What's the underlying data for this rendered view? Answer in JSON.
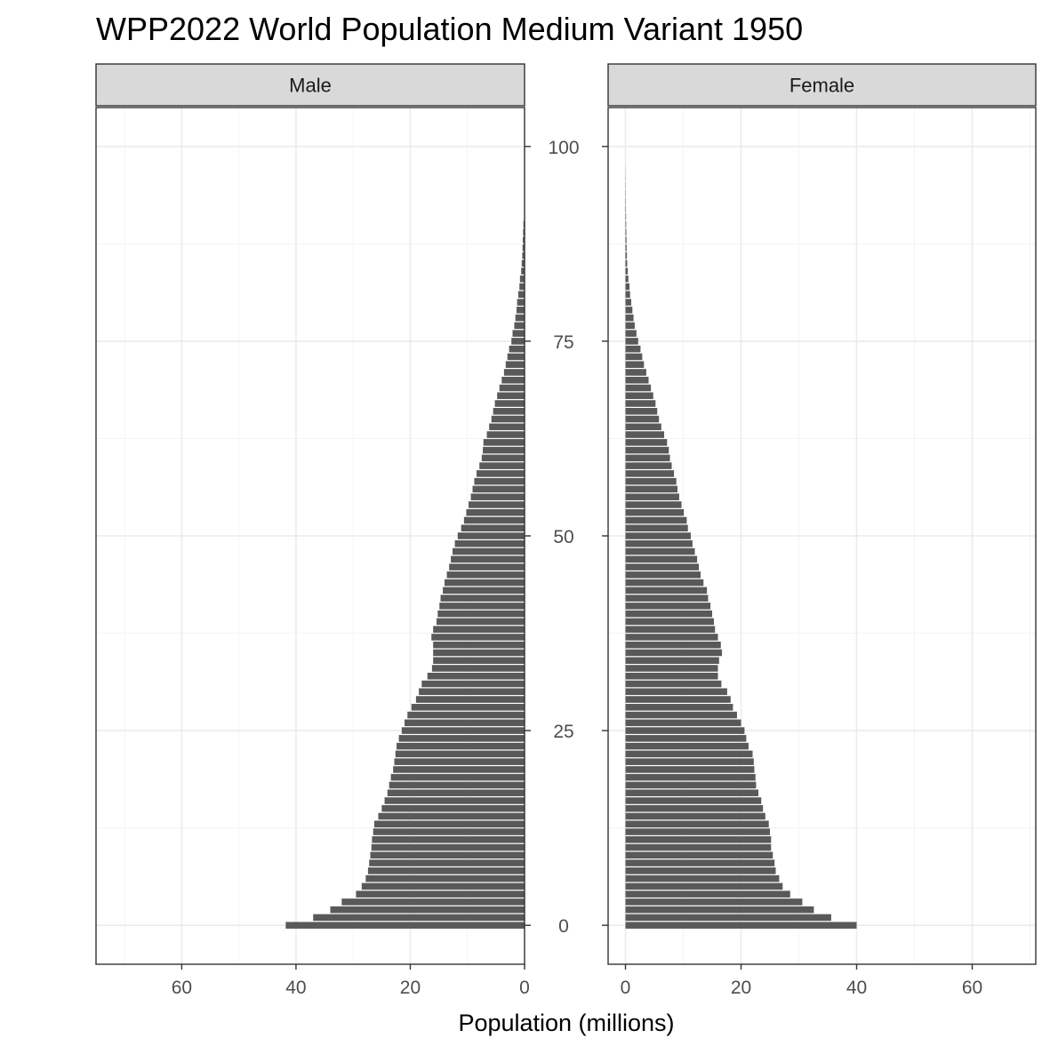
{
  "chart_data": {
    "type": "bar",
    "orientation": "horizontal",
    "title": "WPP2022 World Population Medium Variant 1950",
    "xlabel": "Population (millions)",
    "ylabel": "",
    "y_ticks": [
      0,
      25,
      50,
      75,
      100
    ],
    "ylim": [
      -5,
      105
    ],
    "grid": true,
    "ages": [
      0,
      1,
      2,
      3,
      4,
      5,
      6,
      7,
      8,
      9,
      10,
      11,
      12,
      13,
      14,
      15,
      16,
      17,
      18,
      19,
      20,
      21,
      22,
      23,
      24,
      25,
      26,
      27,
      28,
      29,
      30,
      31,
      32,
      33,
      34,
      35,
      36,
      37,
      38,
      39,
      40,
      41,
      42,
      43,
      44,
      45,
      46,
      47,
      48,
      49,
      50,
      51,
      52,
      53,
      54,
      55,
      56,
      57,
      58,
      59,
      60,
      61,
      62,
      63,
      64,
      65,
      66,
      67,
      68,
      69,
      70,
      71,
      72,
      73,
      74,
      75,
      76,
      77,
      78,
      79,
      80,
      81,
      82,
      83,
      84,
      85,
      86,
      87,
      88,
      89,
      90,
      91,
      92,
      93,
      94,
      95,
      96,
      97,
      98,
      99
    ],
    "panels": [
      {
        "name": "Male",
        "xlim": [
          75,
          0
        ],
        "x_ticks": [
          60,
          40,
          20,
          0
        ],
        "values": [
          41.8,
          37.0,
          34.0,
          32.0,
          29.5,
          28.5,
          27.8,
          27.4,
          27.2,
          27.0,
          26.8,
          26.7,
          26.5,
          26.3,
          25.6,
          25.0,
          24.5,
          24.0,
          23.7,
          23.4,
          23.0,
          22.8,
          22.6,
          22.4,
          22.0,
          21.5,
          21.0,
          20.5,
          19.8,
          19.0,
          18.5,
          18.0,
          17.0,
          16.2,
          16.0,
          16.0,
          16.0,
          16.3,
          16.0,
          15.4,
          15.2,
          14.9,
          14.7,
          14.3,
          14.0,
          13.6,
          13.2,
          12.9,
          12.6,
          12.2,
          11.7,
          11.1,
          10.6,
          10.2,
          9.8,
          9.4,
          9.1,
          8.8,
          8.4,
          7.9,
          7.5,
          7.3,
          7.2,
          6.6,
          6.2,
          5.8,
          5.5,
          5.2,
          4.8,
          4.4,
          4.0,
          3.6,
          3.3,
          3.0,
          2.7,
          2.3,
          2.1,
          1.8,
          1.6,
          1.4,
          1.3,
          1.1,
          0.9,
          0.8,
          0.6,
          0.5,
          0.4,
          0.35,
          0.3,
          0.25,
          0.2,
          0,
          0,
          0,
          0,
          0,
          0,
          0,
          0,
          0
        ]
      },
      {
        "name": "Female",
        "xlim": [
          -3,
          71
        ],
        "x_ticks": [
          0,
          20,
          40,
          60
        ],
        "values": [
          40.0,
          35.6,
          32.6,
          30.6,
          28.5,
          27.2,
          26.6,
          26.0,
          25.8,
          25.5,
          25.2,
          25.2,
          25.0,
          24.8,
          24.2,
          23.8,
          23.5,
          23.0,
          22.6,
          22.5,
          22.3,
          22.2,
          22.0,
          21.3,
          20.9,
          20.6,
          20.0,
          19.3,
          18.6,
          18.2,
          17.6,
          16.6,
          16.0,
          16.0,
          16.2,
          16.7,
          16.5,
          16.0,
          15.5,
          15.3,
          15.0,
          14.7,
          14.3,
          14.1,
          13.5,
          13.0,
          12.7,
          12.4,
          12.0,
          11.6,
          11.3,
          10.8,
          10.6,
          10.1,
          9.7,
          9.3,
          9.0,
          8.8,
          8.4,
          8.0,
          7.7,
          7.5,
          7.2,
          6.7,
          6.2,
          5.8,
          5.5,
          5.2,
          4.8,
          4.4,
          4.0,
          3.6,
          3.2,
          2.9,
          2.6,
          2.2,
          1.9,
          1.6,
          1.4,
          1.2,
          1.0,
          0.8,
          0.7,
          0.5,
          0.4,
          0.3,
          0.25,
          0.2,
          0.18,
          0.15,
          0.12,
          0.1,
          0.08,
          0.06,
          0.05,
          0.04,
          0.03,
          0.02,
          0,
          0
        ]
      }
    ]
  }
}
